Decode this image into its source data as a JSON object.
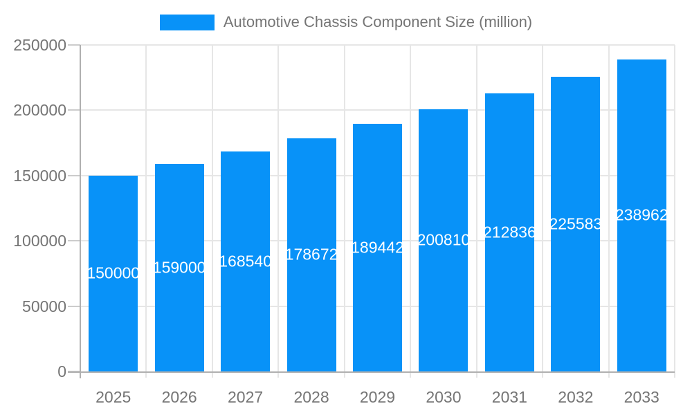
{
  "legend": {
    "label": "Automotive Chassis Component Size (million)"
  },
  "colors": {
    "bar": "#0892f8",
    "grid": "#e6e6e6",
    "axis": "#b0b0b0",
    "tick": "#cccccc",
    "text": "#757575",
    "bar_label": "#ffffff",
    "background": "#ffffff"
  },
  "chart_data": {
    "type": "bar",
    "title": "Automotive Chassis Component Size (million)",
    "xlabel": "",
    "ylabel": "",
    "categories": [
      "2025",
      "2026",
      "2027",
      "2028",
      "2029",
      "2030",
      "2031",
      "2032",
      "2033"
    ],
    "values": [
      150000,
      159000,
      168540,
      178672,
      189442,
      200810,
      212836,
      225583,
      238962
    ],
    "series": [
      {
        "name": "Automotive Chassis Component Size (million)",
        "values": [
          150000,
          159000,
          168540,
          178672,
          189442,
          200810,
          212836,
          225583,
          238962
        ]
      }
    ],
    "ylim": [
      0,
      250000
    ],
    "yticks": [
      0,
      50000,
      100000,
      150000,
      200000,
      250000
    ],
    "grid": true,
    "legend_position": "top",
    "bar_labels_shown": true,
    "bar_label_position": "center"
  }
}
